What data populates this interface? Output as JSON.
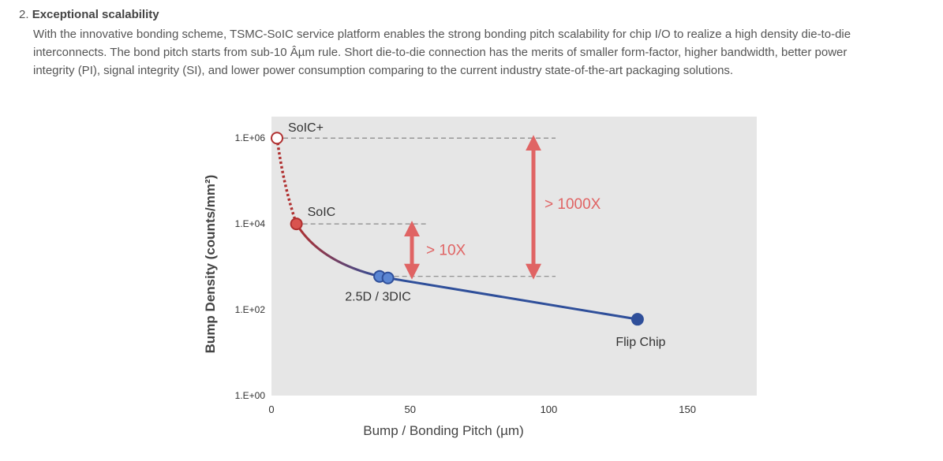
{
  "section": {
    "number": "2.",
    "title": "Exceptional scalability",
    "lines": [
      "With the innovative bonding scheme, TSMC-SoIC service platform enables the strong bonding pitch scalability for chip I/O to realize a high density die-to-die",
      "interconnects. The bond pitch starts from sub-10 Âµm rule. Short die-to-die connection has the merits of smaller form-factor, higher bandwidth, better power",
      "integrity (PI), signal integrity (SI), and lower power consumption comparing to the current industry state-of-the-art packaging solutions."
    ]
  },
  "chart_data": {
    "type": "line",
    "xlabel": "Bump / Bonding Pitch (µm)",
    "ylabel": "Bump Density (counts/mm²)",
    "y_scale": "log",
    "xlim": [
      0,
      175
    ],
    "ylim_log10": [
      0,
      6.5
    ],
    "x_ticks": [
      0,
      50,
      100,
      150
    ],
    "x_tick_labels": [
      "0",
      "50",
      "100",
      "150"
    ],
    "y_ticks_log10": [
      0,
      2,
      4,
      6
    ],
    "y_tick_labels": [
      "1.E+00",
      "1.E+02",
      "1.E+04",
      "1.E+06"
    ],
    "plot_background": "#e6e6e6",
    "points": [
      {
        "label": "SoIC+",
        "x": 2,
        "y": 1000000,
        "style": "hollow"
      },
      {
        "label": "SoIC",
        "x": 9,
        "y": 10000,
        "style": "red"
      },
      {
        "label": "2.5D / 3DIC",
        "x": 39,
        "y": 600,
        "style": "blue"
      },
      {
        "label": "",
        "x": 42,
        "y": 550,
        "style": "blue"
      },
      {
        "label": "Flip Chip",
        "x": 132,
        "y": 60,
        "style": "navy"
      }
    ],
    "annotations": [
      {
        "text": "> 10X",
        "from_y": 600,
        "to_y": 10000
      },
      {
        "text": "> 1000X",
        "from_y": 600,
        "to_y": 1000000
      }
    ],
    "colors": {
      "red": "#d9534f",
      "dark_red": "#b03030",
      "blue": "#5b86d3",
      "navy": "#2f4f9a",
      "arrow": "#e06464"
    }
  }
}
